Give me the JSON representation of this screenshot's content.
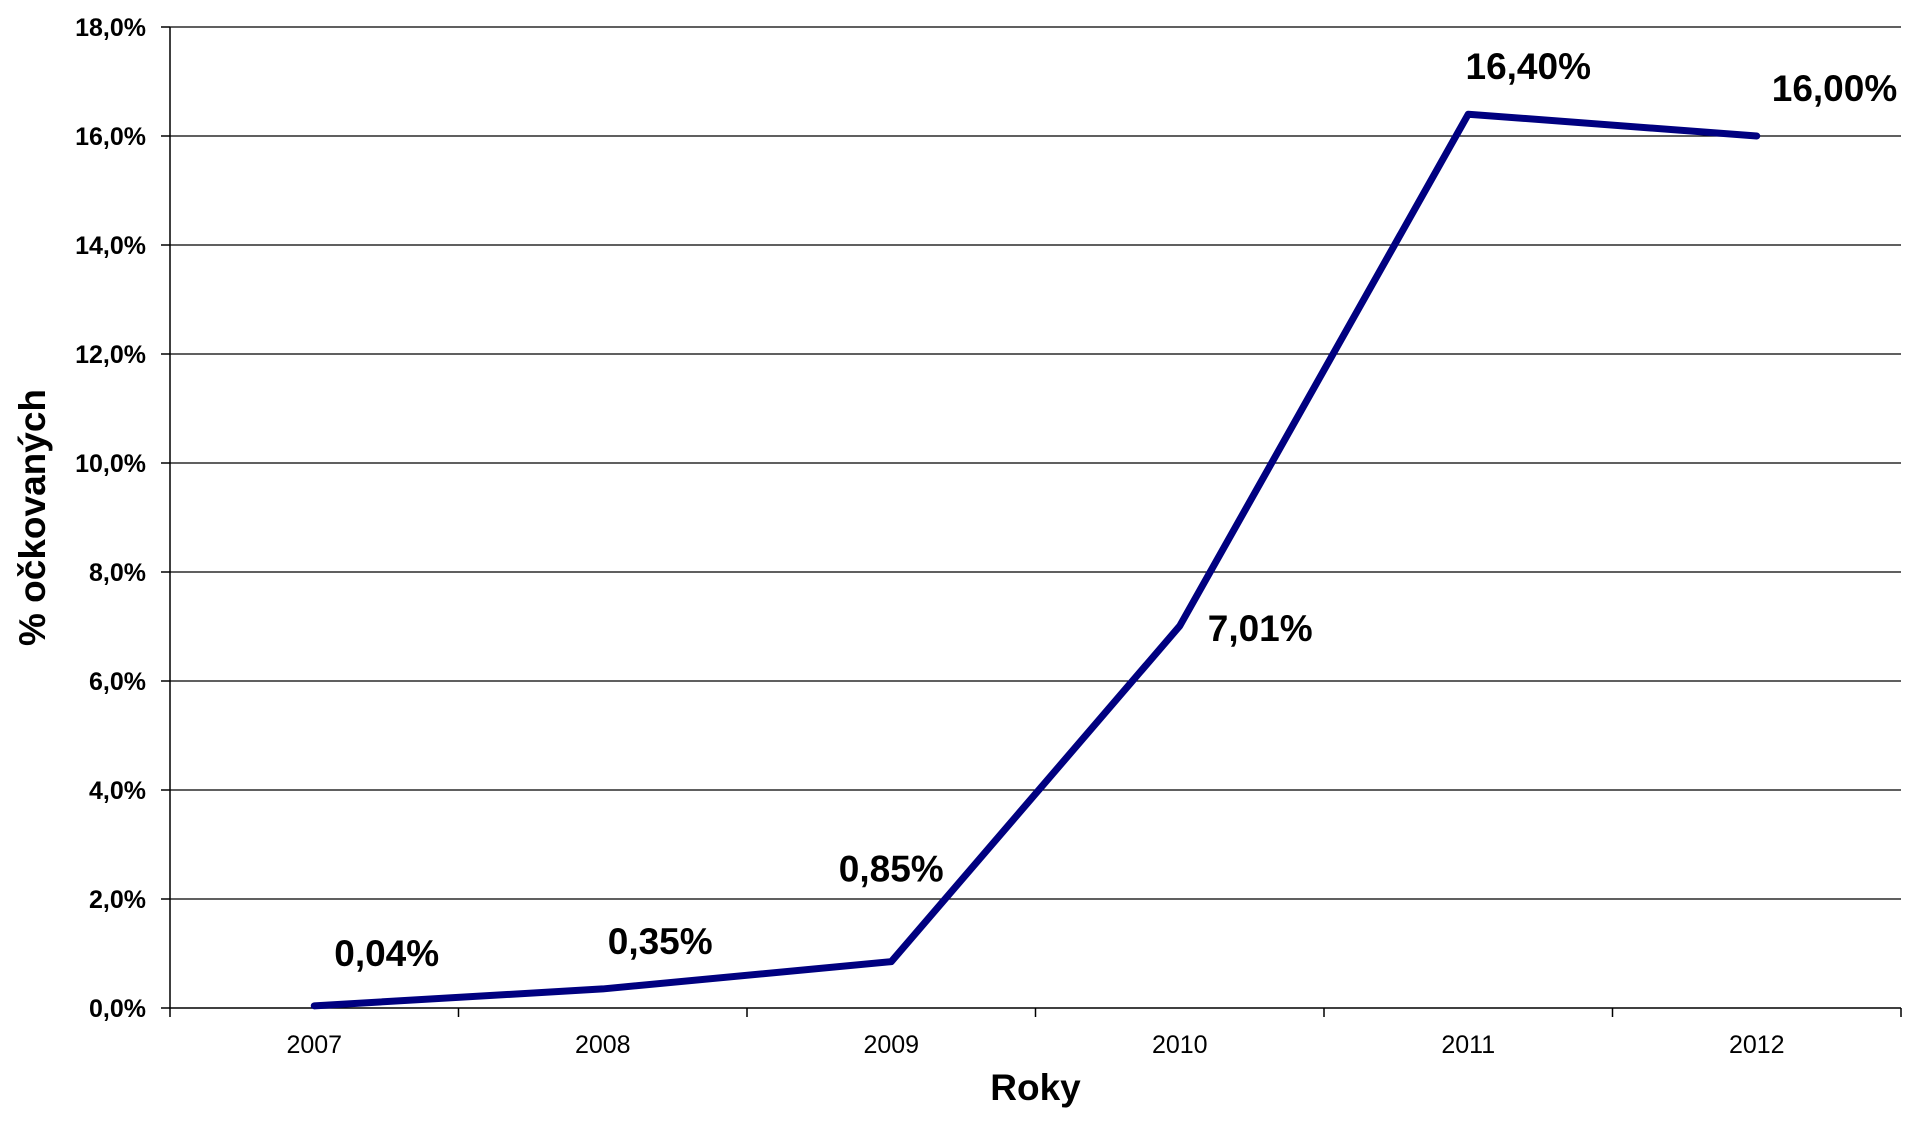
{
  "chart_data": {
    "type": "line",
    "title": "",
    "xlabel": "Roky",
    "ylabel": "% očkovaných",
    "categories": [
      "2007",
      "2008",
      "2009",
      "2010",
      "2011",
      "2012"
    ],
    "series": [
      {
        "values": [
          0.04,
          0.35,
          0.85,
          7.01,
          16.4,
          16.0
        ],
        "data_labels": [
          "0,04%",
          "0,35%",
          "0,85%",
          "7,01%",
          "16,40%",
          "16,00%"
        ],
        "color": "#000080"
      }
    ],
    "ylim": [
      0,
      18
    ],
    "y_ticks": [
      0,
      2,
      4,
      6,
      8,
      10,
      12,
      14,
      16,
      18
    ],
    "y_tick_labels": [
      "0,0%",
      "2,0%",
      "4,0%",
      "6,0%",
      "8,0%",
      "10,0%",
      "12,0%",
      "14,0%",
      "16,0%",
      "18,0%"
    ],
    "grid": true,
    "legend": "none"
  }
}
